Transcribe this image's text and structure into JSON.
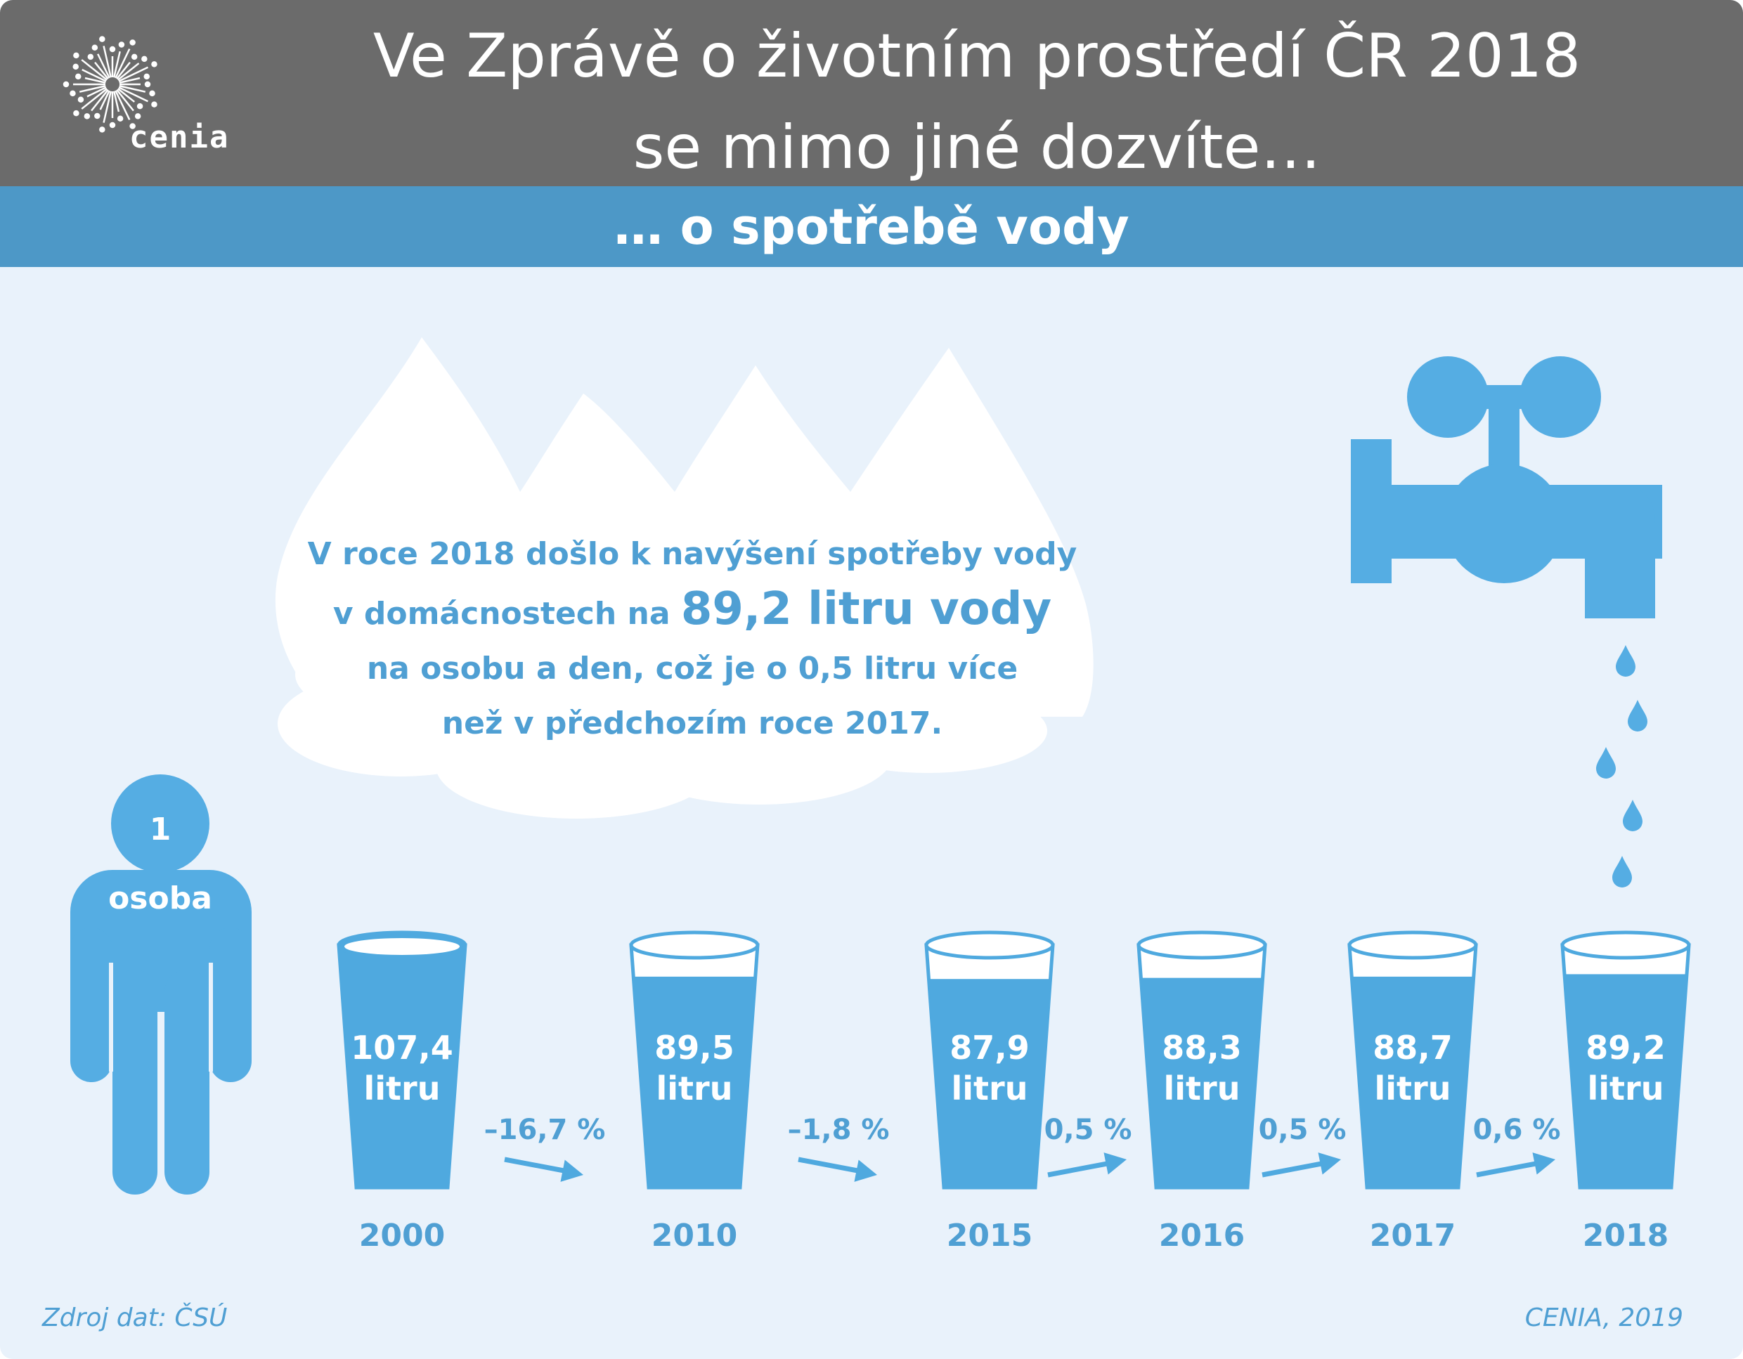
{
  "header": {
    "title_line1": "Ve Zprávě o životním prostředí ČR 2018",
    "title_line2": "se mimo jiné dozvíte…",
    "logo_text": "cenia"
  },
  "subtitle": "… o spotřebě vody",
  "message": {
    "line1": "V roce 2018 došlo k navýšení spotřeby vody",
    "line2_prefix": "v domácnostech na ",
    "line2_highlight": "89,2 litru vody",
    "line3": "na osobu a den, což je o 0,5 litru více",
    "line4": "než v předchozím roce 2017."
  },
  "person": {
    "number": "1",
    "label": "osoba"
  },
  "glasses": [
    {
      "value": "107,4",
      "unit": "litru",
      "year": "2000",
      "fill": 1.0
    },
    {
      "value": "89,5",
      "unit": "litru",
      "year": "2010",
      "fill": 0.87
    },
    {
      "value": "87,9",
      "unit": "litru",
      "year": "2015",
      "fill": 0.86
    },
    {
      "value": "88,3",
      "unit": "litru",
      "year": "2016",
      "fill": 0.865
    },
    {
      "value": "88,7",
      "unit": "litru",
      "year": "2017",
      "fill": 0.87
    },
    {
      "value": "89,2",
      "unit": "litru",
      "year": "2018",
      "fill": 0.88
    }
  ],
  "changes": [
    {
      "label": "–16,7 %",
      "direction": "down"
    },
    {
      "label": "–1,8 %",
      "direction": "down"
    },
    {
      "label": "0,5 %",
      "direction": "up"
    },
    {
      "label": "0,5 %",
      "direction": "up"
    },
    {
      "label": "0,6 %",
      "direction": "up"
    }
  ],
  "footer": {
    "source": "Zdroj dat: ČSÚ",
    "credit": "CENIA, 2019"
  },
  "colors": {
    "header_bg": "#6b6b6b",
    "subtitle_bar": "#4d98c7",
    "background": "#e9f2fb",
    "water": "#4fa9df",
    "text_accent": "#4f9fd3"
  },
  "icons": [
    "cenia-logo-icon",
    "tap-icon",
    "water-drop-icon",
    "person-icon",
    "glass-icon",
    "trend-arrow-icon",
    "cloud-drops-icon"
  ]
}
